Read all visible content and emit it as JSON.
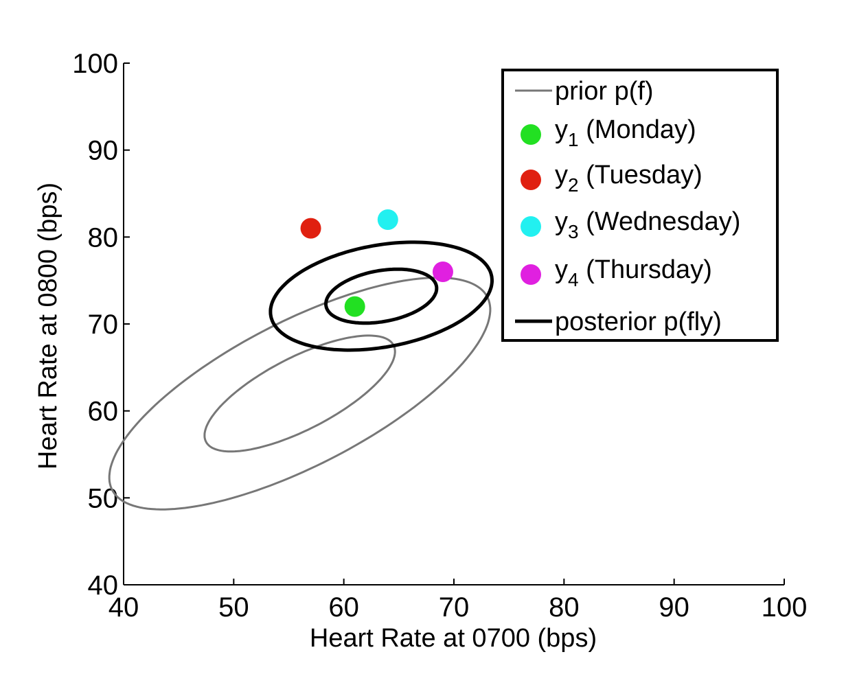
{
  "chart_data": {
    "type": "scatter",
    "xlabel": "Heart Rate at 0700 (bps)",
    "ylabel": "Heart Rate at 0800 (bps)",
    "xlim": [
      40,
      100
    ],
    "ylim": [
      40,
      100
    ],
    "xticks": [
      "40",
      "50",
      "60",
      "70",
      "80",
      "90",
      "100"
    ],
    "yticks": [
      "40",
      "50",
      "60",
      "70",
      "80",
      "90",
      "100"
    ],
    "grid": false,
    "legend_position": "top-right",
    "legend": [
      {
        "label": "prior p(f)",
        "marker": "line",
        "color": "#777777"
      },
      {
        "label": "y",
        "sub": "1",
        "suffix": " (Monday)",
        "marker": "dot",
        "color": "#22e022"
      },
      {
        "label": "y",
        "sub": "2",
        "suffix": " (Tuesday)",
        "marker": "dot",
        "color": "#e02010"
      },
      {
        "label": "y",
        "sub": "3",
        "suffix": " (Wednesday)",
        "marker": "dot",
        "color": "#22f0f0"
      },
      {
        "label": "y",
        "sub": "4",
        "suffix": " (Thursday)",
        "marker": "dot",
        "color": "#e020e0"
      },
      {
        "label": "posterior p(fly)",
        "marker": "line",
        "color": "#000000"
      }
    ],
    "points": [
      {
        "name": "Monday",
        "x": 61,
        "y": 72,
        "color": "#22e022"
      },
      {
        "name": "Tuesday",
        "x": 57,
        "y": 81,
        "color": "#e02010"
      },
      {
        "name": "Wednesday",
        "x": 64,
        "y": 82,
        "color": "#22f0f0"
      },
      {
        "name": "Thursday",
        "x": 69,
        "y": 76,
        "color": "#e020e0"
      }
    ],
    "ellipses": [
      {
        "series": "prior p(f)",
        "level": "outer",
        "cx": 56,
        "cy": 62,
        "angle_deg": 35,
        "a": 20.4,
        "b": 7.8,
        "color": "#777777"
      },
      {
        "series": "prior p(f)",
        "level": "inner",
        "cx": 56,
        "cy": 62,
        "angle_deg": 35,
        "a": 10.2,
        "b": 3.9,
        "color": "#777777"
      },
      {
        "series": "posterior p(fly)",
        "level": "outer",
        "cx": 63.4,
        "cy": 73.2,
        "angle_deg": 15,
        "a": 10.3,
        "b": 5.8,
        "color": "#000000"
      },
      {
        "series": "posterior p(fly)",
        "level": "inner",
        "cx": 63.4,
        "cy": 73.2,
        "angle_deg": 15,
        "a": 5.15,
        "b": 2.9,
        "color": "#000000"
      }
    ]
  }
}
